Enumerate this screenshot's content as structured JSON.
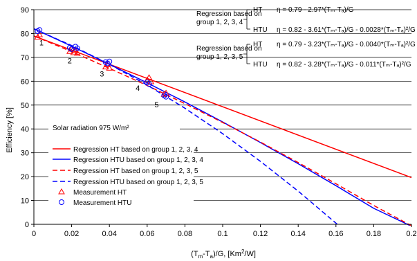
{
  "chart_data": {
    "type": "scatter",
    "title": "",
    "xlabel": "(T_m-T_a)/G,   [Km^2/W]",
    "ylabel": "Efficiency   [%]",
    "xlim": [
      0,
      0.2
    ],
    "ylim": [
      0,
      90
    ],
    "x_ticks": [
      "0",
      "0.02",
      "0.04",
      "0.06",
      "0.08",
      "0.1",
      "0.12",
      "0.14",
      "0.16",
      "0.18",
      "0.2"
    ],
    "y_ticks": [
      "0",
      "10",
      "20",
      "30",
      "40",
      "50",
      "60",
      "70",
      "80",
      "90"
    ],
    "grid": "horizontal",
    "legend_position": "bottom-left",
    "condition_label": "Solar radiation 975 W/m²",
    "series": [
      {
        "name": "Regression HT based on group 1, 2, 3, 4",
        "kind": "line",
        "style": "solid",
        "color": "#ff0000",
        "x": [
          0,
          0.2
        ],
        "y": [
          79.0,
          19.6
        ]
      },
      {
        "name": "Regression HTU based on group 1, 2, 3, 4",
        "kind": "line",
        "style": "solid",
        "color": "#0000ff",
        "x": [
          0,
          0.02,
          0.04,
          0.06,
          0.08,
          0.1,
          0.12,
          0.14,
          0.16,
          0.18,
          0.2
        ],
        "y": [
          82.0,
          74.7,
          67.1,
          59.3,
          51.3,
          42.9,
          34.3,
          25.4,
          16.2,
          6.7,
          -0.8
        ]
      },
      {
        "name": "Regression HT based on group 1, 2, 3, 5",
        "kind": "line",
        "style": "dashed",
        "color": "#ff0000",
        "x": [
          0,
          0.02,
          0.04,
          0.06,
          0.08,
          0.1,
          0.12,
          0.14,
          0.16,
          0.18,
          0.2
        ],
        "y": [
          79.0,
          72.4,
          65.4,
          58.2,
          50.6,
          42.7,
          34.5,
          25.9,
          17.0,
          7.9,
          -0.6
        ]
      },
      {
        "name": "Regression HTU based on group 1, 2, 3, 5",
        "kind": "line",
        "style": "dashed",
        "color": "#0000ff",
        "x": [
          0,
          0.02,
          0.04,
          0.06,
          0.08,
          0.1,
          0.12,
          0.14,
          0.16,
          0.165
        ],
        "y": [
          82.0,
          75.0,
          67.1,
          58.4,
          48.7,
          38.0,
          26.4,
          13.9,
          0.5,
          -2.8
        ]
      },
      {
        "name": "Measurement HT",
        "kind": "scatter",
        "marker": "triangle",
        "color": "#ff0000",
        "x": [
          0.002,
          0.003,
          0.019,
          0.02,
          0.021,
          0.022,
          0.023,
          0.038,
          0.039,
          0.04,
          0.06,
          0.061,
          0.062,
          0.069,
          0.07
        ],
        "y": [
          78.5,
          79.5,
          72.5,
          73.5,
          72.0,
          72.8,
          71.8,
          66.0,
          67.0,
          65.5,
          60.5,
          61.5,
          59.8,
          54.5,
          55.0
        ]
      },
      {
        "name": "Measurement HTU",
        "kind": "scatter",
        "marker": "circle",
        "color": "#0000ff",
        "x": [
          0.002,
          0.003,
          0.019,
          0.02,
          0.022,
          0.023,
          0.038,
          0.039,
          0.04,
          0.06,
          0.061,
          0.069,
          0.07
        ],
        "y": [
          81.0,
          81.5,
          74.0,
          73.5,
          74.5,
          73.8,
          68.0,
          67.5,
          68.3,
          59.5,
          58.8,
          54.0,
          53.5
        ]
      }
    ],
    "group_labels": [
      {
        "text": "1",
        "x": 0.004,
        "y": 75.0
      },
      {
        "text": "2",
        "x": 0.019,
        "y": 67.5
      },
      {
        "text": "3",
        "x": 0.036,
        "y": 62.0
      },
      {
        "text": "4",
        "x": 0.055,
        "y": 56.0
      },
      {
        "text": "5",
        "x": 0.065,
        "y": 49.0
      }
    ],
    "annotations": {
      "block1": {
        "title_line1": "Regression based on",
        "title_line2": "group 1, 2, 3, 4",
        "ht_label": "HT",
        "ht_eq": "η = 0.79 - 2.97*(Tₘ-Tₐ)/G",
        "htu_label": "HTU",
        "htu_eq": "η = 0.82 - 3.61*(Tₘ-Tₐ)/G - 0.0028*(Tₘ-Tₐ)²/G"
      },
      "block2": {
        "title_line1": "Regression based on",
        "title_line2": "group 1, 2, 3, 5",
        "ht_label": "HT",
        "ht_eq": "η = 0.79 - 3.23*(Tₘ-Tₐ)/G - 0.0040*(Tₘ-Tₐ)²/G",
        "htu_label": "HTU",
        "htu_eq": "η = 0.82 - 3.28*(Tₘ-Tₐ)/G - 0.011*(Tₘ-Tₐ)²/G"
      }
    }
  }
}
